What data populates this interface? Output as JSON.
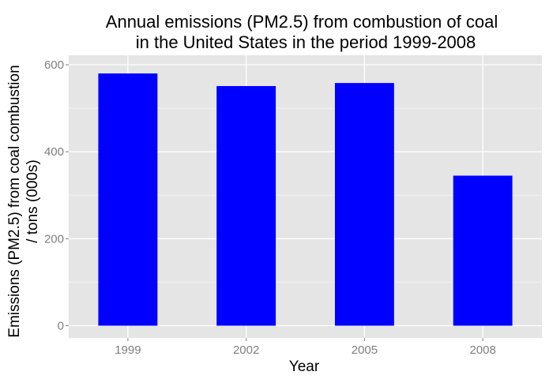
{
  "chart_data": {
    "type": "bar",
    "title": [
      "Annual emissions (PM2.5) from combustion of coal",
      "in the United States in the period 1999-2008"
    ],
    "xlabel": "Year",
    "ylabel": [
      "Emissions (PM2.5) from coal combustion",
      "/ tons (000s)"
    ],
    "categories": [
      "1999",
      "2002",
      "2005",
      "2008"
    ],
    "values": [
      580,
      551,
      558,
      345
    ],
    "ylim": [
      0,
      630
    ],
    "yticks": [
      0,
      200,
      400,
      600
    ],
    "ytick_labels": [
      "0",
      "200",
      "400",
      "600"
    ],
    "grid": true,
    "legend": "none",
    "colors": {
      "bar": "#0000ff",
      "panel_background": "#e5e5e5",
      "grid_major": "#ffffff",
      "grid_minor": "#f2f2f2",
      "tick_label": "#7f7f7f",
      "tick_mark": "#7f7f7f"
    }
  }
}
